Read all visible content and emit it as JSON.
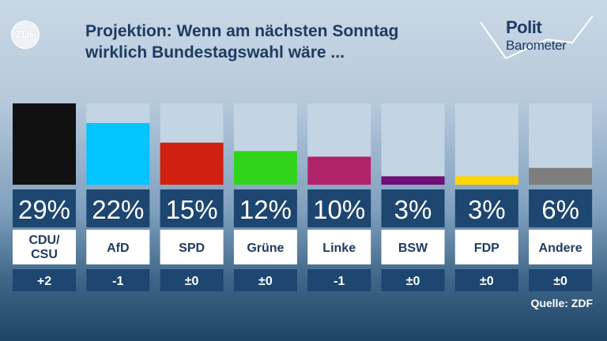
{
  "header": {
    "logo_text": "ZDF",
    "title_line1": "Projektion: Wenn am nächsten Sonntag",
    "title_line2": "wirklich Bundestagswahl wäre ...",
    "brand_line1": "Polit",
    "brand_line2": "Barometer"
  },
  "chart_data": {
    "type": "bar",
    "categories": [
      "CDU/\nCSU",
      "AfD",
      "SPD",
      "Grüne",
      "Linke",
      "BSW",
      "FDP",
      "Andere"
    ],
    "values": [
      29,
      22,
      15,
      12,
      10,
      3,
      3,
      6
    ],
    "value_labels": [
      "29%",
      "22%",
      "15%",
      "12%",
      "10%",
      "3%",
      "3%",
      "6%"
    ],
    "changes": [
      "+2",
      "-1",
      "±0",
      "±0",
      "-1",
      "±0",
      "±0",
      "±0"
    ],
    "colors": [
      "#111111",
      "#00c3ff",
      "#d11f10",
      "#2fd41a",
      "#b0226a",
      "#6d0f74",
      "#ffd500",
      "#7d7d7d"
    ],
    "ylim": [
      0,
      29
    ],
    "legend": "none"
  },
  "footer": {
    "source": "Quelle: ZDF"
  }
}
